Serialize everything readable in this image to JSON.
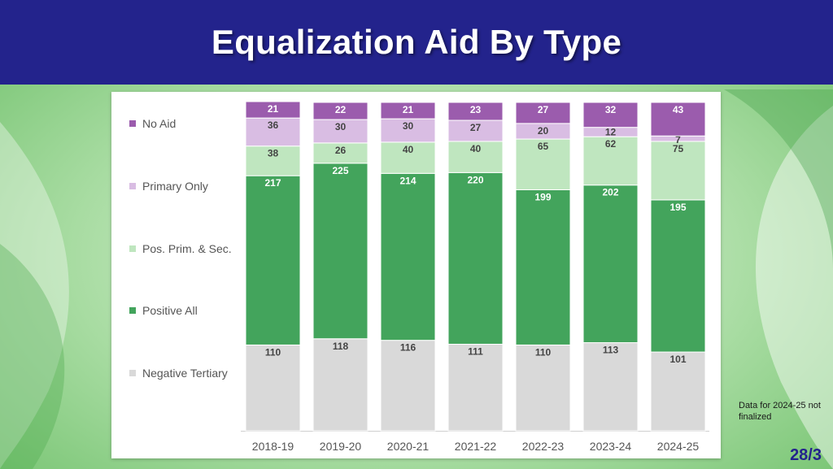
{
  "slide": {
    "title": "Equalization Aid By Type",
    "note": "Data for 2024-25 not finalized",
    "page_number": "28/3"
  },
  "colors": {
    "header": "#23238c",
    "No Aid": "#9b5cad",
    "Primary Only": "#d9bde3",
    "Pos. Prim. & Sec.": "#bfe6bf",
    "Positive All": "#43a45c",
    "Negative Tertiary": "#d9d9d9"
  },
  "chart_data": {
    "type": "bar",
    "stacked": true,
    "title": "",
    "xlabel": "",
    "ylabel": "",
    "categories": [
      "2018-19",
      "2019-20",
      "2020-21",
      "2021-22",
      "2022-23",
      "2023-24",
      "2024-25"
    ],
    "series": [
      {
        "name": "Negative Tertiary",
        "values": [
          110,
          118,
          116,
          111,
          110,
          113,
          101
        ]
      },
      {
        "name": "Positive All",
        "values": [
          217,
          225,
          214,
          220,
          199,
          202,
          195
        ]
      },
      {
        "name": "Pos. Prim. & Sec.",
        "values": [
          38,
          26,
          40,
          40,
          65,
          62,
          75
        ]
      },
      {
        "name": "Primary Only",
        "values": [
          36,
          30,
          30,
          27,
          20,
          12,
          7
        ]
      },
      {
        "name": "No Aid",
        "values": [
          21,
          22,
          21,
          23,
          27,
          32,
          43
        ]
      }
    ],
    "legend": {
      "placement": "left",
      "order": [
        "No Aid",
        "Primary Only",
        "Pos. Prim. & Sec.",
        "Positive All",
        "Negative Tertiary"
      ]
    },
    "grid": false
  }
}
